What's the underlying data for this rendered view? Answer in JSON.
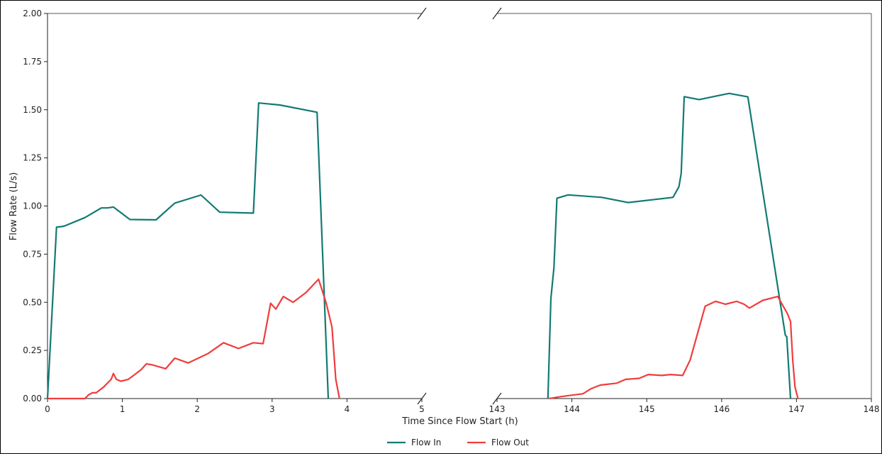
{
  "chart_data": {
    "type": "line",
    "title": "",
    "xlabel": "Time Since Flow Start (h)",
    "ylabel": "Flow Rate (L/s)",
    "ylim": [
      0,
      2.0
    ],
    "y_ticks": [
      "0.00",
      "0.25",
      "0.50",
      "0.75",
      "1.00",
      "1.25",
      "1.50",
      "1.75",
      "2.00"
    ],
    "broken_x_axis": true,
    "legend_position": "bottom-center",
    "grid": false,
    "panels": [
      {
        "xlim": [
          0,
          5
        ],
        "x_ticks": [
          "0",
          "1",
          "2",
          "3",
          "4",
          "5"
        ]
      },
      {
        "xlim": [
          143,
          148
        ],
        "x_ticks": [
          "143",
          "144",
          "145",
          "146",
          "147",
          "148"
        ]
      }
    ],
    "series": [
      {
        "name": "Flow In",
        "color": "#127a73",
        "segments": [
          [
            [
              0,
              0
            ],
            [
              0.12,
              0.89
            ],
            [
              0.22,
              0.895
            ],
            [
              0.5,
              0.94
            ],
            [
              0.72,
              0.99
            ],
            [
              0.8,
              0.99
            ],
            [
              0.88,
              0.995
            ],
            [
              1.1,
              0.93
            ],
            [
              1.45,
              0.928
            ],
            [
              1.7,
              1.015
            ],
            [
              2.05,
              1.057
            ],
            [
              2.3,
              0.968
            ],
            [
              2.75,
              0.963
            ],
            [
              2.82,
              1.535
            ],
            [
              3.1,
              1.525
            ],
            [
              3.6,
              1.487
            ],
            [
              3.75,
              0.0
            ]
          ],
          [
            [
              143.68,
              0.0
            ],
            [
              143.72,
              0.52
            ],
            [
              143.76,
              0.68
            ],
            [
              143.8,
              1.04
            ],
            [
              143.95,
              1.058
            ],
            [
              144.4,
              1.045
            ],
            [
              144.75,
              1.018
            ],
            [
              145.35,
              1.045
            ],
            [
              145.43,
              1.1
            ],
            [
              145.46,
              1.17
            ],
            [
              145.5,
              1.568
            ],
            [
              145.7,
              1.553
            ],
            [
              146.1,
              1.585
            ],
            [
              146.35,
              1.567
            ],
            [
              146.85,
              0.33
            ],
            [
              146.87,
              0.32
            ],
            [
              146.92,
              0.0
            ]
          ]
        ]
      },
      {
        "name": "Flow Out",
        "color": "#f03c3c",
        "segments": [
          [
            [
              0,
              0
            ],
            [
              0.5,
              0.0
            ],
            [
              0.55,
              0.02
            ],
            [
              0.6,
              0.03
            ],
            [
              0.65,
              0.03
            ],
            [
              0.75,
              0.06
            ],
            [
              0.85,
              0.1
            ],
            [
              0.88,
              0.13
            ],
            [
              0.92,
              0.1
            ],
            [
              0.98,
              0.09
            ],
            [
              1.08,
              0.1
            ],
            [
              1.15,
              0.12
            ],
            [
              1.25,
              0.15
            ],
            [
              1.32,
              0.18
            ],
            [
              1.4,
              0.175
            ],
            [
              1.58,
              0.155
            ],
            [
              1.7,
              0.21
            ],
            [
              1.88,
              0.185
            ],
            [
              2.15,
              0.235
            ],
            [
              2.35,
              0.29
            ],
            [
              2.55,
              0.26
            ],
            [
              2.75,
              0.29
            ],
            [
              2.88,
              0.285
            ],
            [
              2.98,
              0.495
            ],
            [
              3.05,
              0.465
            ],
            [
              3.15,
              0.53
            ],
            [
              3.28,
              0.5
            ],
            [
              3.45,
              0.55
            ],
            [
              3.62,
              0.62
            ],
            [
              3.72,
              0.5
            ],
            [
              3.8,
              0.37
            ],
            [
              3.85,
              0.1
            ],
            [
              3.9,
              0.0
            ]
          ],
          [
            [
              143.7,
              0.0
            ],
            [
              143.85,
              0.01
            ],
            [
              144.15,
              0.025
            ],
            [
              144.25,
              0.05
            ],
            [
              144.38,
              0.07
            ],
            [
              144.6,
              0.08
            ],
            [
              144.72,
              0.1
            ],
            [
              144.9,
              0.105
            ],
            [
              145.02,
              0.125
            ],
            [
              145.2,
              0.12
            ],
            [
              145.32,
              0.125
            ],
            [
              145.48,
              0.12
            ],
            [
              145.58,
              0.2
            ],
            [
              145.78,
              0.48
            ],
            [
              145.92,
              0.505
            ],
            [
              146.05,
              0.49
            ],
            [
              146.2,
              0.505
            ],
            [
              146.3,
              0.49
            ],
            [
              146.37,
              0.47
            ],
            [
              146.55,
              0.51
            ],
            [
              146.75,
              0.53
            ],
            [
              146.88,
              0.44
            ],
            [
              146.92,
              0.4
            ],
            [
              146.95,
              0.2
            ],
            [
              146.98,
              0.06
            ],
            [
              147.02,
              0.0
            ]
          ]
        ]
      }
    ]
  }
}
